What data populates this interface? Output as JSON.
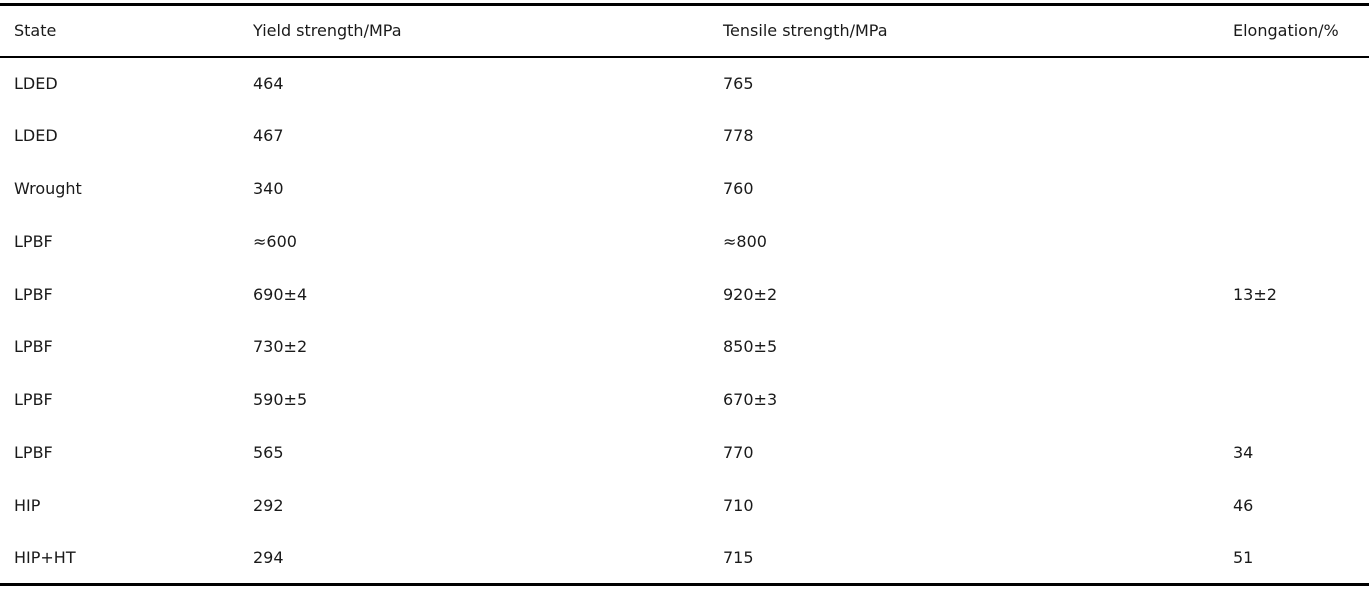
{
  "table": {
    "headers": {
      "state": "State",
      "yield_strength": "Yield strength/MPa",
      "tensile_strength": "Tensile strength/MPa",
      "elongation": "Elongation/%"
    },
    "rows": [
      [
        "LDED",
        "464",
        "765",
        ""
      ],
      [
        "LDED",
        "467",
        "778",
        ""
      ],
      [
        "Wrought",
        "340",
        "760",
        ""
      ],
      [
        "LPBF",
        "≈600",
        "≈800",
        ""
      ],
      [
        "LPBF",
        "690±4",
        "920±2",
        "13±2"
      ],
      [
        "LPBF",
        "730±2",
        "850±5",
        ""
      ],
      [
        "LPBF",
        "590±5",
        "670±3",
        ""
      ],
      [
        "LPBF",
        "565",
        "770",
        "34"
      ],
      [
        "HIP",
        "292",
        "710",
        "46"
      ],
      [
        "HIP+HT",
        "294",
        "715",
        "51"
      ]
    ]
  },
  "colors": {
    "text": "#1a1a1a",
    "rule": "#000000",
    "background": "#ffffff"
  }
}
